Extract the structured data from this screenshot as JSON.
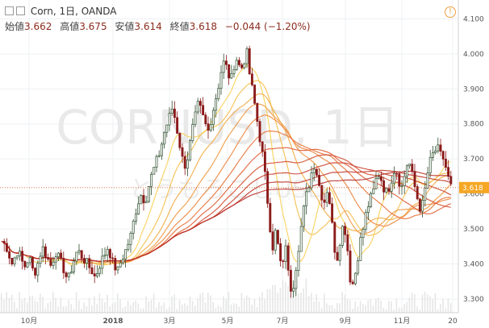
{
  "header": {
    "symbol_line": "Corn, 1日, OANDA",
    "open_label": "始値",
    "open_value": "3.662",
    "high_label": "高値",
    "high_value": "3.675",
    "low_label": "安値",
    "low_value": "3.614",
    "close_label": "終値",
    "close_value": "3.618",
    "change": "−0.044 (−1.20%)",
    "info_glyph": "!"
  },
  "watermark": {
    "line1": "CORNUSD, 1日",
    "line2": "とうもろこしUSD"
  },
  "colors": {
    "up": "#2f4f2f",
    "down": "#8b1a1a",
    "last_price": "#f5a623",
    "ribbon_fast": "#f8d25a",
    "ribbon_slow": "#c0392b"
  },
  "chart_data": {
    "type": "line",
    "x_tick_labels": [
      "10月",
      "2018",
      "3月",
      "5月",
      "7月",
      "9月",
      "11月",
      "20"
    ],
    "y_tick_labels": [
      "3.300",
      "3.400",
      "3.500",
      "3.600",
      "3.700",
      "3.800",
      "3.900",
      "4.000",
      "4.100"
    ],
    "ylim": [
      3.27,
      4.14
    ],
    "last_price_label": "3.618",
    "last_price": 3.618,
    "price_path": [
      [
        0,
        3.47
      ],
      [
        8,
        3.45
      ],
      [
        15,
        3.4
      ],
      [
        22,
        3.44
      ],
      [
        30,
        3.39
      ],
      [
        36,
        3.42
      ],
      [
        42,
        3.37
      ],
      [
        48,
        3.41
      ],
      [
        52,
        3.45
      ],
      [
        58,
        3.42
      ],
      [
        64,
        3.39
      ],
      [
        68,
        3.44
      ],
      [
        74,
        3.41
      ],
      [
        80,
        3.38
      ],
      [
        84,
        3.35
      ],
      [
        90,
        3.4
      ],
      [
        96,
        3.44
      ],
      [
        102,
        3.42
      ],
      [
        108,
        3.4
      ],
      [
        114,
        3.38
      ],
      [
        118,
        3.36
      ],
      [
        122,
        3.39
      ],
      [
        128,
        3.42
      ],
      [
        134,
        3.45
      ],
      [
        140,
        3.4
      ],
      [
        146,
        3.38
      ],
      [
        150,
        3.41
      ],
      [
        156,
        3.44
      ],
      [
        162,
        3.48
      ],
      [
        168,
        3.55
      ],
      [
        174,
        3.6
      ],
      [
        180,
        3.58
      ],
      [
        186,
        3.64
      ],
      [
        192,
        3.68
      ],
      [
        198,
        3.72
      ],
      [
        204,
        3.78
      ],
      [
        210,
        3.82
      ],
      [
        214,
        3.85
      ],
      [
        218,
        3.8
      ],
      [
        222,
        3.75
      ],
      [
        226,
        3.7
      ],
      [
        230,
        3.68
      ],
      [
        234,
        3.72
      ],
      [
        238,
        3.78
      ],
      [
        242,
        3.82
      ],
      [
        246,
        3.86
      ],
      [
        250,
        3.83
      ],
      [
        254,
        3.8
      ],
      [
        258,
        3.78
      ],
      [
        262,
        3.82
      ],
      [
        266,
        3.86
      ],
      [
        270,
        3.9
      ],
      [
        274,
        3.95
      ],
      [
        278,
        3.98
      ],
      [
        282,
        3.95
      ],
      [
        286,
        3.92
      ],
      [
        290,
        3.97
      ],
      [
        294,
        3.99
      ],
      [
        298,
        3.95
      ],
      [
        302,
        3.98
      ],
      [
        306,
        4.0
      ],
      [
        310,
        3.93
      ],
      [
        314,
        3.88
      ],
      [
        318,
        3.82
      ],
      [
        322,
        3.76
      ],
      [
        326,
        3.7
      ],
      [
        330,
        3.62
      ],
      [
        334,
        3.52
      ],
      [
        338,
        3.45
      ],
      [
        342,
        3.5
      ],
      [
        346,
        3.42
      ],
      [
        350,
        3.38
      ],
      [
        354,
        3.46
      ],
      [
        358,
        3.35
      ],
      [
        362,
        3.32
      ],
      [
        366,
        3.38
      ],
      [
        370,
        3.45
      ],
      [
        374,
        3.52
      ],
      [
        378,
        3.58
      ],
      [
        382,
        3.62
      ],
      [
        386,
        3.66
      ],
      [
        390,
        3.69
      ],
      [
        394,
        3.64
      ],
      [
        398,
        3.6
      ],
      [
        402,
        3.58
      ],
      [
        406,
        3.62
      ],
      [
        410,
        3.55
      ],
      [
        414,
        3.45
      ],
      [
        418,
        3.42
      ],
      [
        422,
        3.48
      ],
      [
        426,
        3.52
      ],
      [
        430,
        3.46
      ],
      [
        434,
        3.36
      ],
      [
        438,
        3.34
      ],
      [
        442,
        3.4
      ],
      [
        446,
        3.46
      ],
      [
        450,
        3.5
      ],
      [
        454,
        3.55
      ],
      [
        458,
        3.58
      ],
      [
        462,
        3.6
      ],
      [
        466,
        3.64
      ],
      [
        470,
        3.66
      ],
      [
        474,
        3.63
      ],
      [
        478,
        3.6
      ],
      [
        482,
        3.62
      ],
      [
        486,
        3.65
      ],
      [
        490,
        3.68
      ],
      [
        494,
        3.64
      ],
      [
        498,
        3.62
      ],
      [
        502,
        3.66
      ],
      [
        506,
        3.7
      ],
      [
        510,
        3.66
      ],
      [
        514,
        3.62
      ],
      [
        518,
        3.58
      ],
      [
        522,
        3.55
      ],
      [
        526,
        3.6
      ],
      [
        530,
        3.66
      ],
      [
        534,
        3.7
      ],
      [
        538,
        3.72
      ],
      [
        542,
        3.73
      ],
      [
        546,
        3.71
      ],
      [
        550,
        3.7
      ],
      [
        554,
        3.66
      ],
      [
        558,
        3.62
      ]
    ]
  }
}
